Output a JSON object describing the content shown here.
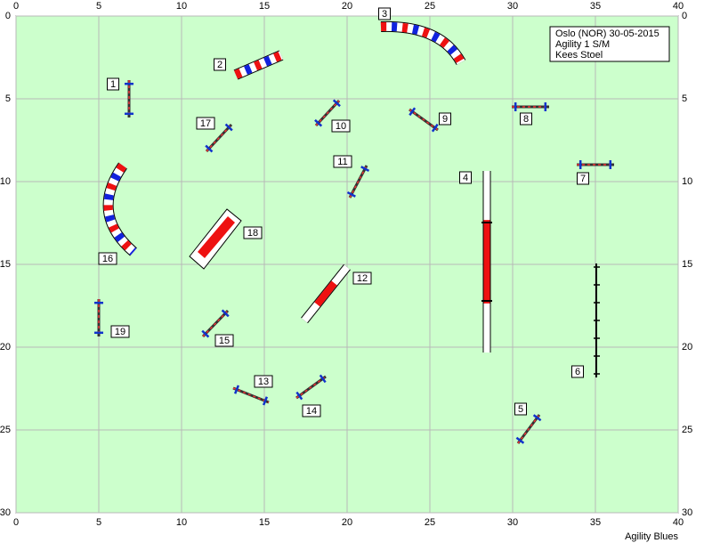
{
  "axes": {
    "x_ticks": [
      0,
      5,
      10,
      15,
      20,
      25,
      30,
      35,
      40
    ],
    "y_ticks": [
      0,
      5,
      10,
      15,
      20,
      25,
      30
    ]
  },
  "info": [
    "Oslo (NOR) 30-05-2015",
    "Agility 1 S/M",
    "Kees Stoel"
  ],
  "obstacles": [
    {
      "label": "1"
    },
    {
      "label": "2"
    },
    {
      "label": "3"
    },
    {
      "label": "4"
    },
    {
      "label": "5"
    },
    {
      "label": "6"
    },
    {
      "label": "7"
    },
    {
      "label": "8"
    },
    {
      "label": "9"
    },
    {
      "label": "10"
    },
    {
      "label": "11"
    },
    {
      "label": "12"
    },
    {
      "label": "13"
    },
    {
      "label": "14"
    },
    {
      "label": "15"
    },
    {
      "label": "16"
    },
    {
      "label": "17"
    },
    {
      "label": "18"
    },
    {
      "label": "19"
    }
  ],
  "footer": "Agility Blues"
}
